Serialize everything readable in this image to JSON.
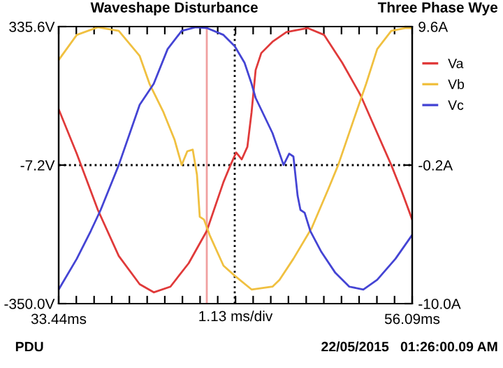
{
  "chart_data": {
    "type": "line",
    "title": "Waveshape Disturbance",
    "subtitle": "Three Phase Wye",
    "xlabel": "1.13 ms/div",
    "annotations": [
      "PDU",
      "22/05/2015   01:26:00.09 AM"
    ],
    "series": [
      {
        "name": "Va",
        "color": "#e03a3a",
        "x": [
          33.44,
          34.6,
          35.95,
          37.29,
          38.63,
          39.53,
          40.6,
          41.77,
          42.93,
          44.0,
          44.45,
          44.81,
          45.17,
          45.53,
          45.8,
          46.06,
          46.42,
          47.14,
          48.03,
          49.38,
          50.45,
          51.61,
          52.78,
          53.85,
          54.75,
          55.46,
          56.09
        ],
        "values": [
          131,
          21,
          -118,
          -232,
          -302,
          -322,
          -308,
          -250,
          -170,
          -49,
          -7,
          24,
          7,
          38,
          124,
          228,
          270,
          298,
          322,
          332,
          315,
          246,
          166,
          72,
          -7,
          -76,
          -142
        ]
      },
      {
        "name": "Vb",
        "color": "#f0c040",
        "x": [
          33.44,
          34.6,
          35.95,
          37.29,
          38.63,
          39.26,
          40.15,
          40.87,
          41.32,
          41.68,
          42.03,
          42.3,
          42.48,
          42.75,
          43.11,
          44.0,
          44.72,
          45.8,
          47.14,
          47.59,
          48.48,
          49.65,
          50.72,
          51.35,
          52.51,
          53.14,
          53.85,
          54.75,
          55.64,
          56.09
        ],
        "values": [
          253,
          315,
          334,
          325,
          263,
          194,
          124,
          55,
          -7,
          27,
          31,
          -31,
          -135,
          -142,
          -180,
          -256,
          -281,
          -315,
          -308,
          -291,
          -239,
          -163,
          -66,
          -7,
          124,
          194,
          280,
          325,
          332,
          332
        ]
      },
      {
        "name": "Vc",
        "color": "#4444d4",
        "x": [
          33.44,
          34.6,
          35.5,
          36.13,
          37.29,
          38.63,
          39.53,
          40.42,
          41.32,
          42.21,
          42.93,
          44.0,
          44.72,
          45.35,
          45.8,
          46.06,
          47.14,
          47.85,
          48.21,
          48.48,
          48.75,
          48.93,
          49.2,
          49.56,
          50.27,
          51.17,
          52.06,
          52.96,
          53.85,
          55.02,
          56.09
        ],
        "values": [
          -315,
          -239,
          -170,
          -118,
          -7,
          142,
          194,
          280,
          325,
          334,
          332,
          315,
          287,
          246,
          194,
          159,
          72,
          -7,
          21,
          14,
          -83,
          -118,
          -125,
          -170,
          -222,
          -274,
          -308,
          -315,
          -291,
          -239,
          -180
        ]
      }
    ],
    "xlim": [
      33.44,
      56.09
    ],
    "xticks": [
      {
        "value": 33.44,
        "label": "33.44ms"
      },
      {
        "value": 34.57,
        "label": null
      },
      {
        "value": 35.71,
        "label": null
      },
      {
        "value": 36.84,
        "label": null
      },
      {
        "value": 37.97,
        "label": null
      },
      {
        "value": 39.11,
        "label": null
      },
      {
        "value": 40.24,
        "label": null
      },
      {
        "value": 41.37,
        "label": null
      },
      {
        "value": 42.5,
        "label": null
      },
      {
        "value": 43.63,
        "label": null
      },
      {
        "value": 44.77,
        "label": null
      },
      {
        "value": 45.9,
        "label": null
      },
      {
        "value": 47.03,
        "label": null
      },
      {
        "value": 48.16,
        "label": null
      },
      {
        "value": 49.3,
        "label": null
      },
      {
        "value": 50.43,
        "label": null
      },
      {
        "value": 51.56,
        "label": null
      },
      {
        "value": 52.69,
        "label": null
      },
      {
        "value": 53.83,
        "label": null
      },
      {
        "value": 54.96,
        "label": null
      },
      {
        "value": 56.09,
        "label": "56.09ms"
      }
    ],
    "ylim": [
      -350.0,
      335.6
    ],
    "yticks": [
      {
        "value": -350.0,
        "label": "-350.0V"
      },
      {
        "value": -7.2,
        "label": "-7.2V"
      },
      {
        "value": 335.6,
        "label": "335.6V"
      }
    ],
    "y2lim": [
      -10.0,
      9.6
    ],
    "y2ticks": [
      {
        "value": -10.0,
        "label": "-10.0A"
      },
      {
        "value": -0.2,
        "label": "-0.2A"
      },
      {
        "value": 9.6,
        "label": "9.6A"
      }
    ],
    "ref_lines": [
      {
        "axis": "x",
        "value": 42.93,
        "color": "#f0a0a0",
        "line_style": "solid"
      },
      {
        "axis": "x",
        "value": 44.72,
        "color": "#000000",
        "line_style": "dotted"
      },
      {
        "axis": "y",
        "value": -7.2,
        "color": "#000000",
        "line_style": "dotted"
      }
    ],
    "legend": "top right",
    "grid": false,
    "marker": "none",
    "line_style": "solid"
  }
}
